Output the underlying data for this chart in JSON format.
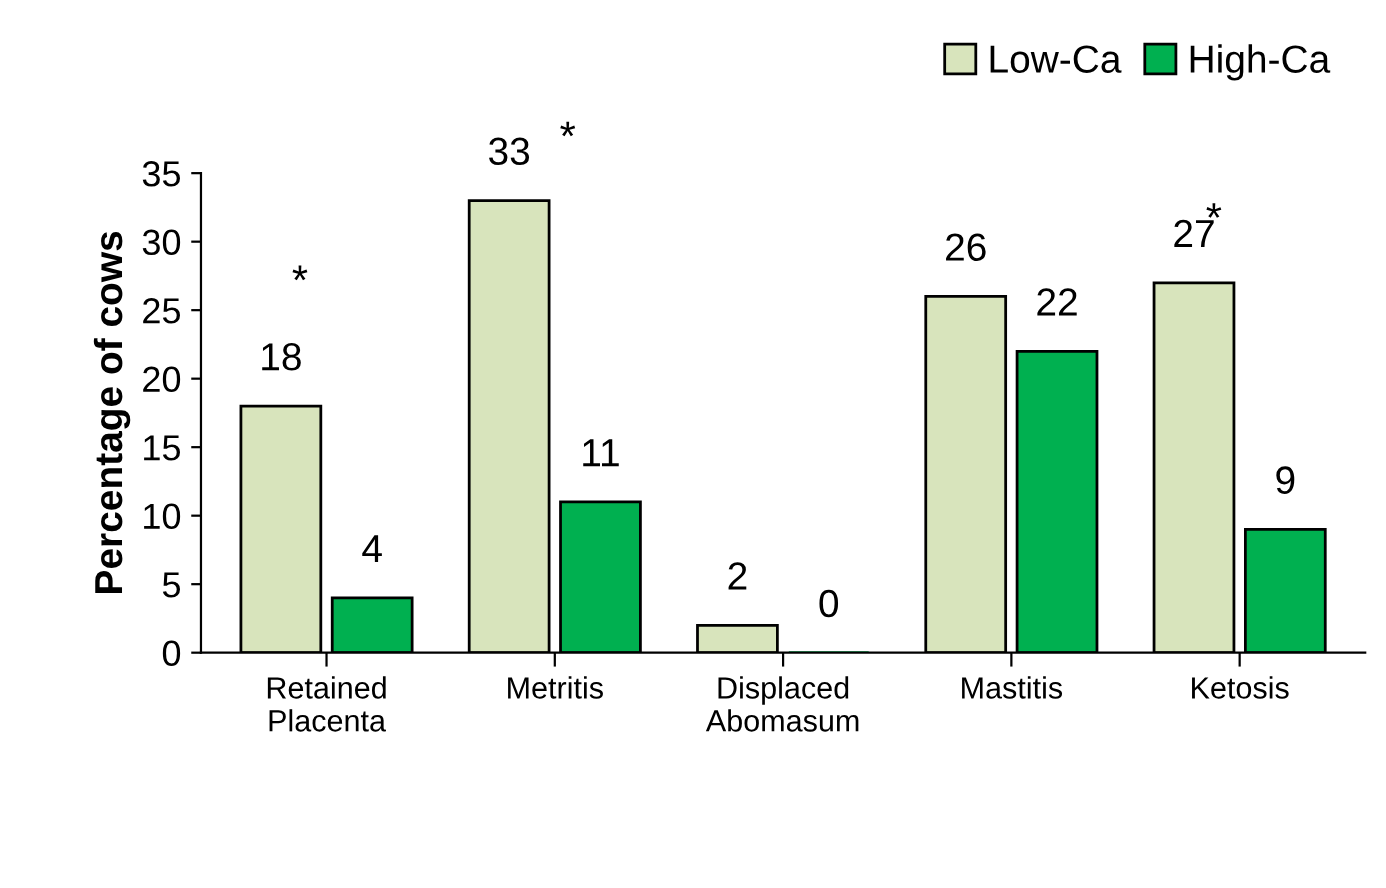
{
  "chart_data": {
    "type": "bar",
    "ylabel": "Percentage of cows",
    "categories": [
      "Retained\nPlacenta",
      "Metritis",
      "Displaced\nAbomasum",
      "Mastitis",
      "Ketosis"
    ],
    "series": [
      {
        "name": "Low-Ca",
        "color": "#d8e4bc",
        "values": [
          18,
          33,
          2,
          26,
          27
        ]
      },
      {
        "name": "High-Ca",
        "color": "#00b050",
        "values": [
          4,
          11,
          0,
          22,
          9
        ]
      }
    ],
    "ylim": [
      0,
      35
    ],
    "yticks": [
      0,
      5,
      10,
      15,
      20,
      25,
      30,
      35
    ],
    "data_labels": true,
    "legend": "top right",
    "annotations": [
      "*",
      "*",
      "*"
    ]
  }
}
